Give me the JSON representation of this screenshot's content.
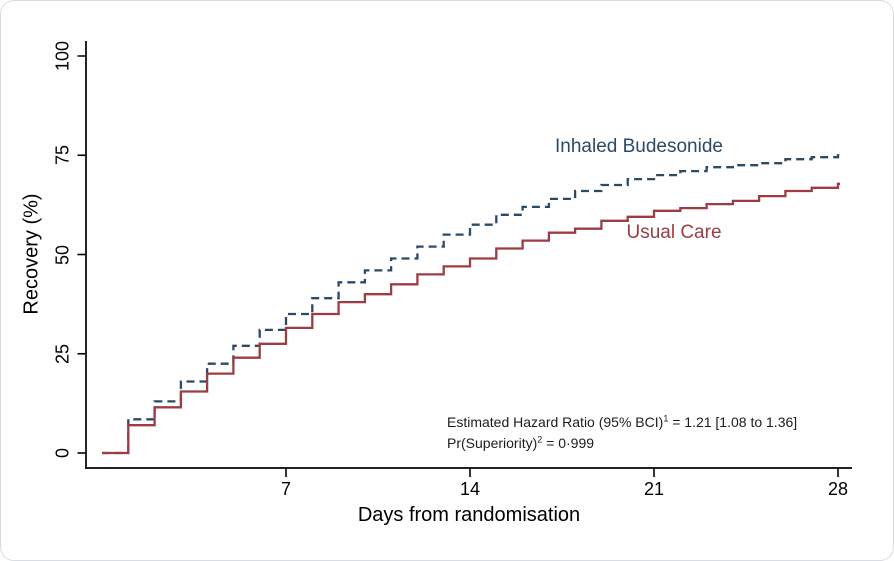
{
  "figure": {
    "y_axis_title": "Recovery (%)",
    "x_axis_title": "Days from randomisation",
    "annotation": {
      "line1_pre": "Estimated Hazard Ratio (95% BCI)",
      "line1_sup": "1",
      "line1_post": " = 1.21 [1.08 to 1.36]",
      "line2_pre": "Pr(Superiority)",
      "line2_sup": "2",
      "line2_post": " = 0·999"
    },
    "colors": {
      "budesonide": "#2b4a66",
      "usual_care": "#9e3c44",
      "axis": "#000000"
    }
  },
  "chart_data": {
    "type": "line",
    "subtype": "step",
    "title": "",
    "xlabel": "Days from randomisation",
    "ylabel": "Recovery (%)",
    "xlim": [
      0,
      28
    ],
    "ylim": [
      0,
      100
    ],
    "xticks": [
      7,
      14,
      21,
      28
    ],
    "yticks": [
      0,
      25,
      50,
      75,
      100
    ],
    "grid": false,
    "legend_position": "inline-curve-labels",
    "x": [
      0,
      1,
      2,
      3,
      4,
      5,
      6,
      7,
      8,
      9,
      10,
      11,
      12,
      13,
      14,
      15,
      16,
      17,
      18,
      19,
      20,
      21,
      22,
      23,
      24,
      25,
      26,
      27,
      28
    ],
    "series": [
      {
        "name": "Inhaled Budesonide",
        "color": "#2b4a66",
        "line_style": "dashed",
        "values": [
          0,
          8.5,
          13,
          18,
          22.5,
          27,
          31,
          35,
          39,
          43,
          46,
          49,
          52,
          55,
          57.5,
          60,
          62,
          64,
          66,
          67.5,
          69,
          70,
          71,
          72,
          72.5,
          73,
          74,
          74.5,
          75
        ]
      },
      {
        "name": "Usual Care",
        "color": "#9e3c44",
        "line_style": "solid",
        "values": [
          0,
          7,
          11.5,
          15.5,
          20,
          24,
          27.5,
          31.5,
          35,
          38,
          40,
          42.5,
          45,
          47,
          49,
          51.5,
          53.5,
          55.5,
          56.5,
          58.5,
          59.5,
          61,
          61.7,
          62.7,
          63.5,
          64.7,
          66,
          66.8,
          67.8
        ]
      }
    ]
  }
}
